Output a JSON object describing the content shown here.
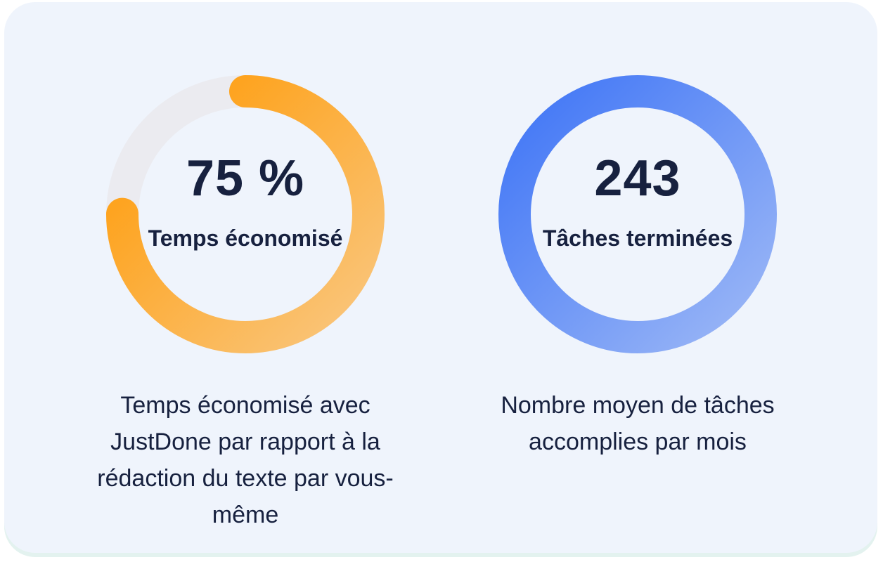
{
  "stats": [
    {
      "value": "75 %",
      "label": "Temps économisé",
      "description": "Temps économisé avec JustDone par rapport à la rédaction du texte par vous-même",
      "progress": 0.75,
      "colors": {
        "track": "#ebebf0",
        "start": "#f9c780",
        "end": "#ff9a05"
      }
    },
    {
      "value": "243",
      "label": "Tâches terminées",
      "description": "Nombre moyen de tâches accomplies par mois",
      "progress": 1.0,
      "colors": {
        "track": "#ebebf0",
        "start": "#9db8f6",
        "end": "#3f75f6"
      }
    }
  ]
}
